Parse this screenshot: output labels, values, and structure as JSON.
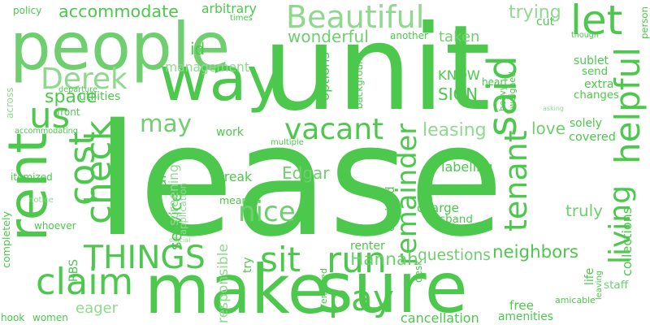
{
  "palette": {
    "background": "#ffffff",
    "primary": "#4cc84c",
    "light": "#8fd98f",
    "mid": "#6fcf6f"
  },
  "words": [
    {
      "text": "lease",
      "color": "#4cc84c"
    },
    {
      "text": "unit",
      "color": "#4cc84c"
    },
    {
      "text": "people",
      "color": "#6fcf6f"
    },
    {
      "text": "make",
      "color": "#4cc84c"
    },
    {
      "text": "sure",
      "color": "#4cc84c"
    },
    {
      "text": "way",
      "color": "#4cc84c"
    },
    {
      "text": "rent",
      "color": "#4cc84c"
    },
    {
      "text": "Beautiful",
      "color": "#8fd98f"
    },
    {
      "text": "let",
      "color": "#4cc84c"
    },
    {
      "text": "said",
      "color": "#4cc84c"
    },
    {
      "text": "helpful",
      "color": "#4cc84c"
    },
    {
      "text": "living",
      "color": "#4cc84c"
    },
    {
      "text": "tenant",
      "color": "#4cc84c"
    },
    {
      "text": "remainder",
      "color": "#4cc84c"
    },
    {
      "text": "cost",
      "color": "#4cc84c"
    },
    {
      "text": "check",
      "color": "#4cc84c"
    },
    {
      "text": "us",
      "color": "#4cc84c"
    },
    {
      "text": "claim",
      "color": "#4cc84c"
    },
    {
      "text": "run",
      "color": "#4cc84c"
    },
    {
      "text": "sit",
      "color": "#4cc84c"
    },
    {
      "text": "pay",
      "color": "#4cc84c"
    },
    {
      "text": "may",
      "color": "#6fcf6f"
    },
    {
      "text": "vacant",
      "color": "#4cc84c"
    },
    {
      "text": "THINGS",
      "color": "#4cc84c"
    },
    {
      "text": "Derek",
      "color": "#8fd98f"
    },
    {
      "text": "nice",
      "color": "#6fcf6f"
    },
    {
      "text": "wonderful",
      "color": "#6fcf6f"
    },
    {
      "text": "accommodate",
      "color": "#4cc84c"
    },
    {
      "text": "management",
      "color": "#8fd98f"
    },
    {
      "text": "trying",
      "color": "#8fd98f"
    },
    {
      "text": "taken",
      "color": "#6fcf6f"
    },
    {
      "text": "another",
      "color": "#4cc84c"
    },
    {
      "text": "policy",
      "color": "#4cc84c"
    },
    {
      "text": "arbitrary",
      "color": "#4cc84c"
    },
    {
      "text": "times",
      "color": "#4cc84c"
    },
    {
      "text": "id",
      "color": "#4cc84c"
    },
    {
      "text": "space",
      "color": "#4cc84c"
    },
    {
      "text": "utilities",
      "color": "#4cc84c"
    },
    {
      "text": "front",
      "color": "#4cc84c"
    },
    {
      "text": "departure",
      "color": "#4cc84c"
    },
    {
      "text": "across",
      "color": "#8fd98f"
    },
    {
      "text": "accommodating",
      "color": "#4cc84c"
    },
    {
      "text": "itemized",
      "color": "#4cc84c"
    },
    {
      "text": "notice",
      "color": "#8fd98f"
    },
    {
      "text": "completely",
      "color": "#4cc84c"
    },
    {
      "text": "whoever",
      "color": "#4cc84c"
    },
    {
      "text": "eager",
      "color": "#8fd98f"
    },
    {
      "text": "hook",
      "color": "#4cc84c"
    },
    {
      "text": "women",
      "color": "#4cc84c"
    },
    {
      "text": "RBS",
      "color": "#4cc84c"
    },
    {
      "text": "official",
      "color": "#8fd98f"
    },
    {
      "text": "service",
      "color": "#4cc84c"
    },
    {
      "text": "care",
      "color": "#4cc84c"
    },
    {
      "text": "screening",
      "color": "#8fd98f"
    },
    {
      "text": "application",
      "color": "#8fd98f"
    },
    {
      "text": "work",
      "color": "#4cc84c"
    },
    {
      "text": "multiple",
      "color": "#4cc84c"
    },
    {
      "text": "break",
      "color": "#4cc84c"
    },
    {
      "text": "means",
      "color": "#4cc84c"
    },
    {
      "text": "Edgar",
      "color": "#6fcf6f"
    },
    {
      "text": "options",
      "color": "#4cc84c"
    },
    {
      "text": "background",
      "color": "#4cc84c"
    },
    {
      "text": "KNOW",
      "color": "#4cc84c"
    },
    {
      "text": "SIGN",
      "color": "#4cc84c"
    },
    {
      "text": "heart",
      "color": "#4cc84c"
    },
    {
      "text": "heavy",
      "color": "#4cc84c"
    },
    {
      "text": "weighed",
      "color": "#4cc84c"
    },
    {
      "text": "cut",
      "color": "#4cc84c"
    },
    {
      "text": "though",
      "color": "#4cc84c"
    },
    {
      "text": "sublet",
      "color": "#4cc84c"
    },
    {
      "text": "send",
      "color": "#4cc84c"
    },
    {
      "text": "extra",
      "color": "#4cc84c"
    },
    {
      "text": "changes",
      "color": "#4cc84c"
    },
    {
      "text": "asking",
      "color": "#8fd98f"
    },
    {
      "text": "leasing",
      "color": "#8fd98f"
    },
    {
      "text": "love",
      "color": "#6fcf6f"
    },
    {
      "text": "solely",
      "color": "#4cc84c"
    },
    {
      "text": "covered",
      "color": "#4cc84c"
    },
    {
      "text": "labeling",
      "color": "#4cc84c"
    },
    {
      "text": "decided",
      "color": "#4cc84c"
    },
    {
      "text": "charge",
      "color": "#4cc84c"
    },
    {
      "text": "husband",
      "color": "#4cc84c"
    },
    {
      "text": "truly",
      "color": "#6fcf6f"
    },
    {
      "text": "neighbors",
      "color": "#4cc84c"
    },
    {
      "text": "questions",
      "color": "#6fcf6f"
    },
    {
      "text": "Hannah",
      "color": "#6fcf6f"
    },
    {
      "text": "renter",
      "color": "#4cc84c"
    },
    {
      "text": "desk",
      "color": "#4cc84c"
    },
    {
      "text": "emailed",
      "color": "#4cc84c"
    },
    {
      "text": "try",
      "color": "#4cc84c"
    },
    {
      "text": "responsible",
      "color": "#8fd98f"
    },
    {
      "text": "cancellation",
      "color": "#4cc84c"
    },
    {
      "text": "amenities",
      "color": "#4cc84c"
    },
    {
      "text": "free",
      "color": "#4cc84c"
    },
    {
      "text": "amicable",
      "color": "#4cc84c"
    },
    {
      "text": "life",
      "color": "#4cc84c"
    },
    {
      "text": "leaving",
      "color": "#4cc84c"
    },
    {
      "text": "staff",
      "color": "#6fcf6f"
    },
    {
      "text": "collections",
      "color": "#4cc84c"
    },
    {
      "text": "person",
      "color": "#4cc84c"
    }
  ]
}
